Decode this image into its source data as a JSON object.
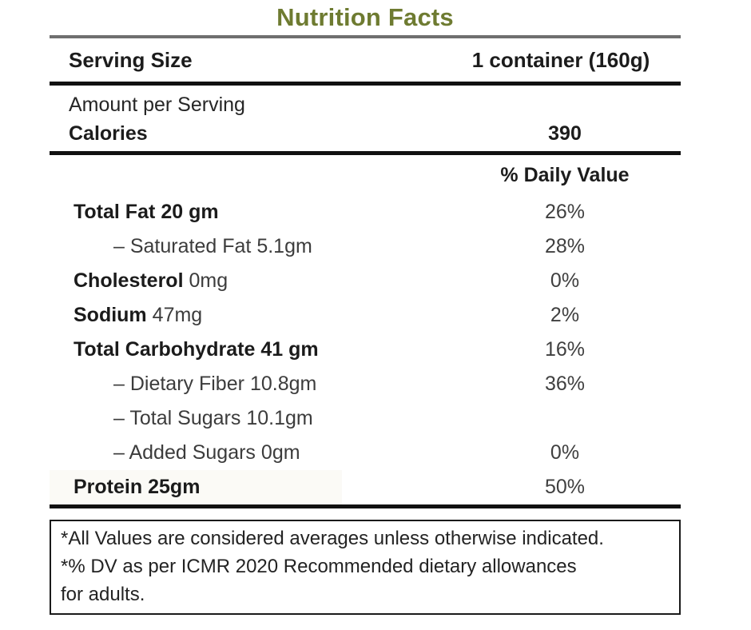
{
  "title": "Nutrition Facts",
  "colors": {
    "title_olive": "#6e7b31",
    "rule_gray": "#6f6f6f",
    "rule_black": "#111111",
    "protein_highlight": "#fbfaf6",
    "text_dark": "#1b1b1b",
    "text_muted": "#3c3c3c"
  },
  "serving": {
    "label": "Serving Size",
    "value": "1 container (160g)"
  },
  "amount_per_serving": "Amount per Serving",
  "calories": {
    "label": "Calories",
    "value": "390"
  },
  "daily_value_header": "% Daily Value",
  "rows": [
    {
      "name": "Total Fat",
      "amount": "20 gm",
      "dv": "26%",
      "name_bold": true,
      "amount_bold": true,
      "indent": false,
      "highlight": false
    },
    {
      "name": "– Saturated Fat",
      "amount": "5.1gm",
      "dv": "28%",
      "name_bold": false,
      "amount_bold": false,
      "indent": true,
      "highlight": false
    },
    {
      "name": "Cholesterol",
      "amount": "0mg",
      "dv": "0%",
      "name_bold": true,
      "amount_bold": false,
      "indent": false,
      "highlight": false
    },
    {
      "name": "Sodium",
      "amount": "47mg",
      "dv": "2%",
      "name_bold": true,
      "amount_bold": false,
      "indent": false,
      "highlight": false
    },
    {
      "name": "Total Carbohydrate",
      "amount": "41 gm",
      "dv": "16%",
      "name_bold": true,
      "amount_bold": true,
      "indent": false,
      "highlight": false
    },
    {
      "name": "– Dietary Fiber",
      "amount": "10.8gm",
      "dv": "36%",
      "name_bold": false,
      "amount_bold": false,
      "indent": true,
      "highlight": false
    },
    {
      "name": "– Total Sugars",
      "amount": "10.1gm",
      "dv": "",
      "name_bold": false,
      "amount_bold": false,
      "indent": true,
      "highlight": false
    },
    {
      "name": "– Added Sugars",
      "amount": "0gm",
      "dv": "0%",
      "name_bold": false,
      "amount_bold": false,
      "indent": true,
      "highlight": false
    },
    {
      "name": "Protein",
      "amount": "25gm",
      "dv": "50%",
      "name_bold": true,
      "amount_bold": true,
      "indent": false,
      "highlight": true
    }
  ],
  "footnotes": [
    "*All Values are considered averages unless otherwise indicated.",
    "*% DV as per ICMR 2020 Recommended dietary allowances",
    "for adults."
  ]
}
